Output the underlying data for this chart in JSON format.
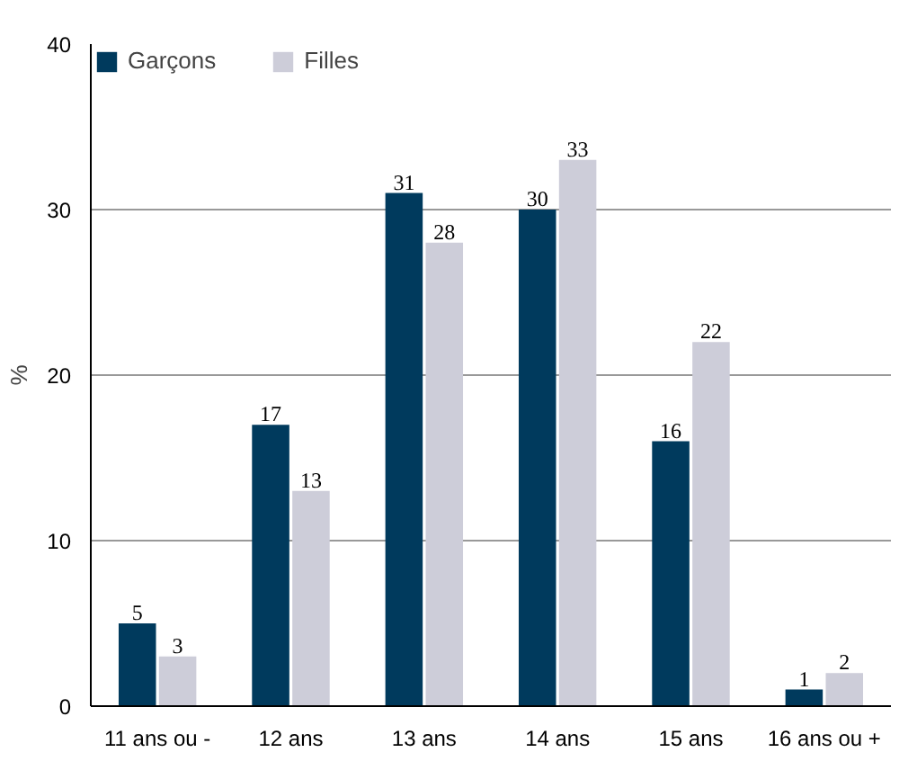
{
  "chart_data": {
    "type": "bar",
    "ylabel": "%",
    "categories": [
      "11 ans ou -",
      "12 ans",
      "13 ans",
      "14 ans",
      "15 ans",
      "16 ans ou +"
    ],
    "series": [
      {
        "name": "Garçons",
        "color": "#003a5d",
        "values": [
          5,
          17,
          31,
          30,
          16,
          1
        ]
      },
      {
        "name": "Filles",
        "color": "#cdcdd9",
        "values": [
          3,
          13,
          28,
          33,
          22,
          2
        ]
      }
    ],
    "ylim": [
      0,
      40
    ],
    "yticks": [
      0,
      10,
      20,
      30,
      40
    ],
    "grid": "y",
    "legend": "top",
    "data_labels": true
  }
}
